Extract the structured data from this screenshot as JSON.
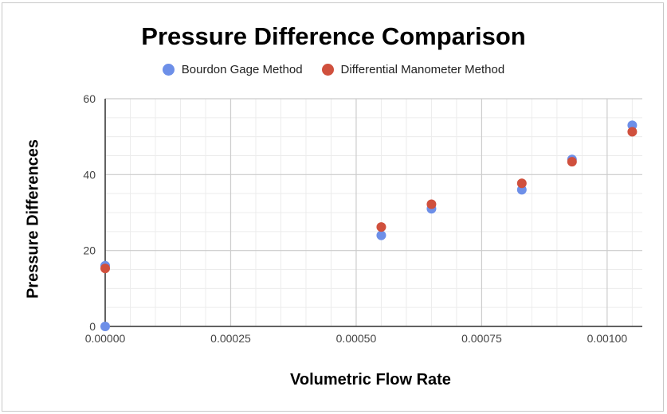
{
  "chart_data": {
    "type": "scatter",
    "title": "Pressure Difference Comparison",
    "xlabel": "Volumetric Flow Rate",
    "ylabel": "Pressure Differences",
    "xlim": [
      0,
      0.00107
    ],
    "ylim": [
      0,
      60
    ],
    "x_ticks": [
      "0.00000",
      "0.00025",
      "0.00050",
      "0.00075",
      "0.00100"
    ],
    "x_tick_values": [
      0,
      0.00025,
      0.0005,
      0.00075,
      0.001
    ],
    "y_ticks": [
      "0",
      "20",
      "40",
      "60"
    ],
    "y_tick_values": [
      0,
      20,
      40,
      60
    ],
    "grid": true,
    "legend_position": "top",
    "series": [
      {
        "name": "Bourdon Gage Method",
        "color": "#6d8fe8",
        "points": [
          [
            0,
            0
          ],
          [
            0,
            16
          ],
          [
            0.00055,
            24
          ],
          [
            0.00065,
            31
          ],
          [
            0.00083,
            36
          ],
          [
            0.00093,
            44
          ],
          [
            0.00105,
            53
          ]
        ]
      },
      {
        "name": "Differential Manometer Method",
        "color": "#d0503d",
        "points": [
          [
            0,
            15.3
          ],
          [
            0.00055,
            26.2
          ],
          [
            0.00065,
            32.2
          ],
          [
            0.00083,
            37.7
          ],
          [
            0.00093,
            43.4
          ],
          [
            0.00105,
            51.3
          ]
        ]
      }
    ]
  }
}
